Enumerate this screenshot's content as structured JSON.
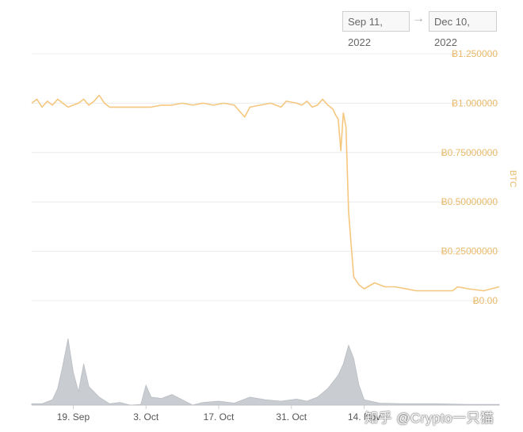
{
  "date_range": {
    "start": "Sep 11, 2022",
    "arrow": "→",
    "end": "Dec 10, 2022"
  },
  "watermark": "知乎 @Crypto一只猫",
  "colors": {
    "price_line": "#f5c77e",
    "price_axis": "#e8b968",
    "volume": "#c9ccd1",
    "grid": "#ececec"
  },
  "chart_data": {
    "type": "line",
    "title": "",
    "ylabel": "BTC",
    "ylim": [
      0,
      1.25
    ],
    "y_ticks": [
      {
        "value": 1.25,
        "label": "Ƀ1.250000"
      },
      {
        "value": 1.0,
        "label": "Ƀ1.000000"
      },
      {
        "value": 0.75,
        "label": "Ƀ0.75000000"
      },
      {
        "value": 0.5,
        "label": "Ƀ0.50000000"
      },
      {
        "value": 0.25,
        "label": "Ƀ0.25000000"
      },
      {
        "value": 0,
        "label": "Ƀ0.00"
      }
    ],
    "x_ticks": [
      {
        "date": "2022-09-19",
        "label": "19. Sep"
      },
      {
        "date": "2022-10-03",
        "label": "3. Oct"
      },
      {
        "date": "2022-10-17",
        "label": "17. Oct"
      },
      {
        "date": "2022-10-31",
        "label": "31. Oct"
      },
      {
        "date": "2022-11-14",
        "label": "14. Nov"
      }
    ],
    "xlim": [
      "2022-09-11",
      "2022-12-10"
    ],
    "series": [
      {
        "kind": "price",
        "points": [
          [
            "2022-09-11",
            1.0
          ],
          [
            "2022-09-12",
            1.02
          ],
          [
            "2022-09-13",
            0.98
          ],
          [
            "2022-09-14",
            1.01
          ],
          [
            "2022-09-15",
            0.99
          ],
          [
            "2022-09-16",
            1.02
          ],
          [
            "2022-09-17",
            1.0
          ],
          [
            "2022-09-18",
            0.98
          ],
          [
            "2022-09-19",
            0.99
          ],
          [
            "2022-09-20",
            1.0
          ],
          [
            "2022-09-21",
            1.02
          ],
          [
            "2022-09-22",
            0.99
          ],
          [
            "2022-09-23",
            1.01
          ],
          [
            "2022-09-24",
            1.04
          ],
          [
            "2022-09-25",
            1.0
          ],
          [
            "2022-09-26",
            0.98
          ],
          [
            "2022-09-28",
            0.98
          ],
          [
            "2022-10-01",
            0.98
          ],
          [
            "2022-10-04",
            0.98
          ],
          [
            "2022-10-06",
            0.99
          ],
          [
            "2022-10-08",
            0.99
          ],
          [
            "2022-10-10",
            1.0
          ],
          [
            "2022-10-12",
            0.99
          ],
          [
            "2022-10-14",
            1.0
          ],
          [
            "2022-10-16",
            0.99
          ],
          [
            "2022-10-18",
            1.0
          ],
          [
            "2022-10-20",
            0.99
          ],
          [
            "2022-10-21",
            0.96
          ],
          [
            "2022-10-22",
            0.93
          ],
          [
            "2022-10-23",
            0.98
          ],
          [
            "2022-10-25",
            0.99
          ],
          [
            "2022-10-27",
            1.0
          ],
          [
            "2022-10-29",
            0.98
          ],
          [
            "2022-10-30",
            1.01
          ],
          [
            "2022-11-01",
            1.0
          ],
          [
            "2022-11-02",
            0.99
          ],
          [
            "2022-11-03",
            1.01
          ],
          [
            "2022-11-04",
            0.98
          ],
          [
            "2022-11-05",
            0.99
          ],
          [
            "2022-11-06",
            1.02
          ],
          [
            "2022-11-07",
            0.99
          ],
          [
            "2022-11-08",
            0.97
          ],
          [
            "2022-11-08T12",
            0.94
          ],
          [
            "2022-11-09",
            0.92
          ],
          [
            "2022-11-09T12",
            0.76
          ],
          [
            "2022-11-10",
            0.95
          ],
          [
            "2022-11-10T12",
            0.88
          ],
          [
            "2022-11-11",
            0.45
          ],
          [
            "2022-11-11T12",
            0.28
          ],
          [
            "2022-11-12",
            0.12
          ],
          [
            "2022-11-13",
            0.08
          ],
          [
            "2022-11-14",
            0.06
          ],
          [
            "2022-11-16",
            0.09
          ],
          [
            "2022-11-18",
            0.07
          ],
          [
            "2022-11-20",
            0.07
          ],
          [
            "2022-11-24",
            0.05
          ],
          [
            "2022-11-28",
            0.05
          ],
          [
            "2022-12-01",
            0.05
          ],
          [
            "2022-12-02",
            0.07
          ],
          [
            "2022-12-04",
            0.06
          ],
          [
            "2022-12-07",
            0.05
          ],
          [
            "2022-12-10",
            0.07
          ]
        ]
      },
      {
        "kind": "volume",
        "points": [
          [
            "2022-09-11",
            0.02
          ],
          [
            "2022-09-13",
            0.02
          ],
          [
            "2022-09-15",
            0.08
          ],
          [
            "2022-09-16",
            0.25
          ],
          [
            "2022-09-17",
            0.6
          ],
          [
            "2022-09-18",
            1.0
          ],
          [
            "2022-09-19",
            0.5
          ],
          [
            "2022-09-20",
            0.2
          ],
          [
            "2022-09-21",
            0.62
          ],
          [
            "2022-09-22",
            0.28
          ],
          [
            "2022-09-24",
            0.12
          ],
          [
            "2022-09-26",
            0.02
          ],
          [
            "2022-09-28",
            0.04
          ],
          [
            "2022-09-30",
            0.0
          ],
          [
            "2022-10-02",
            0.01
          ],
          [
            "2022-10-03",
            0.3
          ],
          [
            "2022-10-04",
            0.12
          ],
          [
            "2022-10-06",
            0.1
          ],
          [
            "2022-10-08",
            0.16
          ],
          [
            "2022-10-10",
            0.08
          ],
          [
            "2022-10-12",
            0.0
          ],
          [
            "2022-10-14",
            0.04
          ],
          [
            "2022-10-17",
            0.06
          ],
          [
            "2022-10-20",
            0.03
          ],
          [
            "2022-10-23",
            0.12
          ],
          [
            "2022-10-26",
            0.08
          ],
          [
            "2022-10-29",
            0.06
          ],
          [
            "2022-11-01",
            0.09
          ],
          [
            "2022-11-03",
            0.06
          ],
          [
            "2022-11-05",
            0.12
          ],
          [
            "2022-11-07",
            0.25
          ],
          [
            "2022-11-09",
            0.45
          ],
          [
            "2022-11-10",
            0.62
          ],
          [
            "2022-11-11",
            0.9
          ],
          [
            "2022-11-12",
            0.7
          ],
          [
            "2022-11-13",
            0.3
          ],
          [
            "2022-11-14",
            0.08
          ],
          [
            "2022-11-17",
            0.03
          ],
          [
            "2022-11-22",
            0.02
          ],
          [
            "2022-11-28",
            0.02
          ],
          [
            "2022-12-04",
            0.01
          ],
          [
            "2022-12-10",
            0.01
          ]
        ]
      }
    ],
    "grid": true
  }
}
